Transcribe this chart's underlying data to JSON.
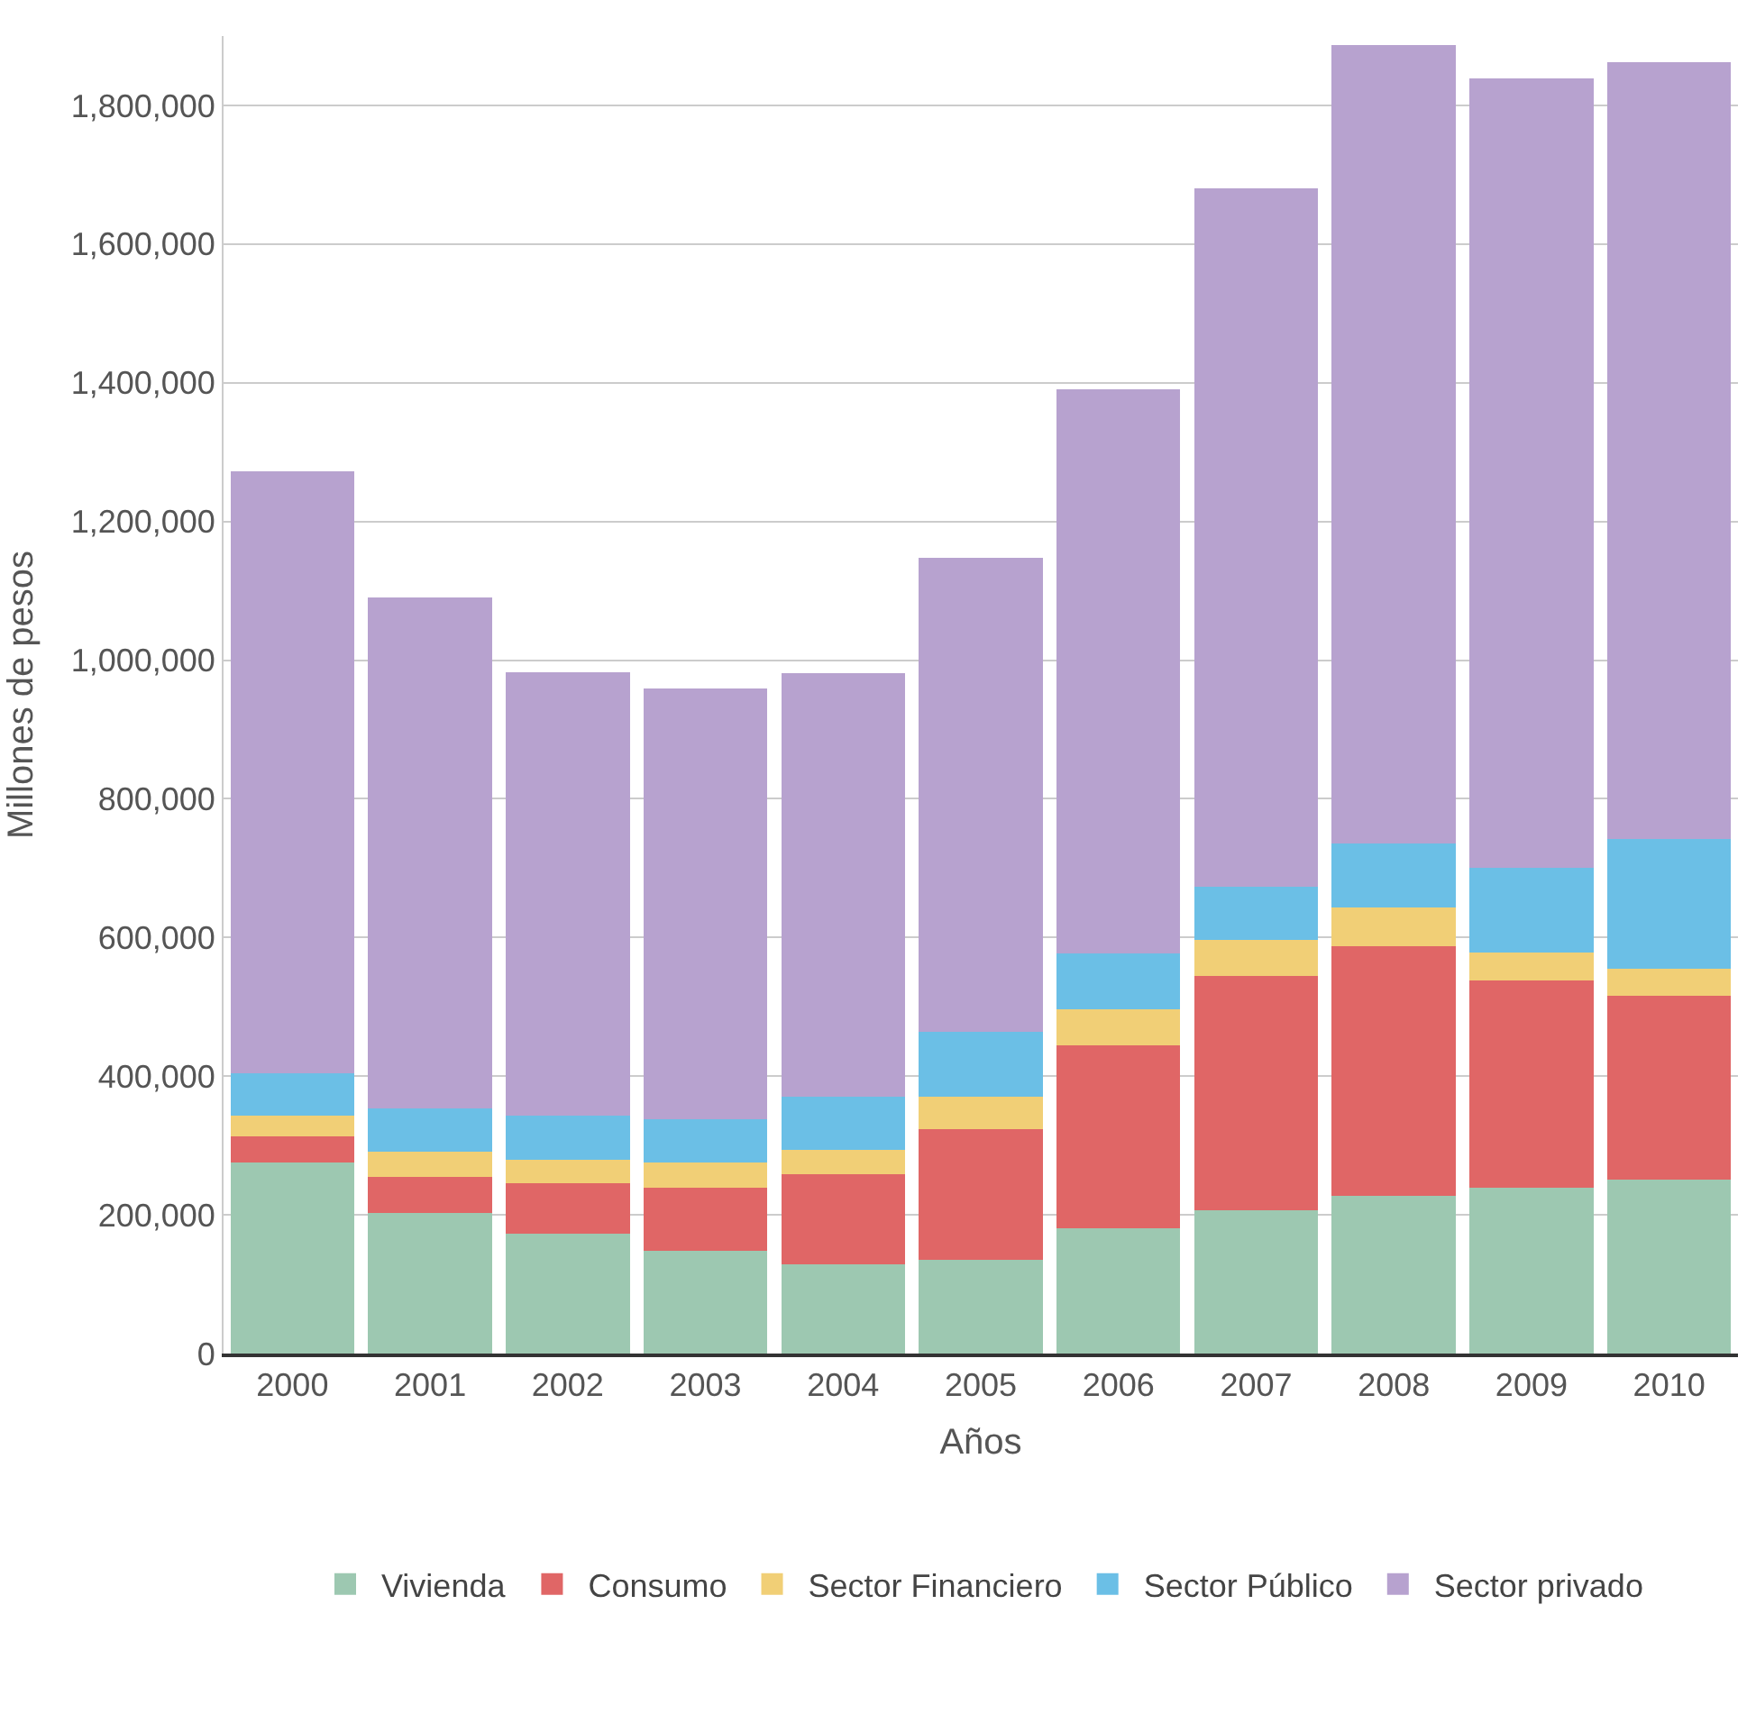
{
  "chart_data": {
    "type": "bar",
    "stacked": true,
    "xlabel": "Años",
    "ylabel": "Millones de pesos",
    "categories": [
      "2000",
      "2001",
      "2002",
      "2003",
      "2004",
      "2005",
      "2006",
      "2007",
      "2008",
      "2009",
      "2010"
    ],
    "series": [
      {
        "name": "Vivienda",
        "color": "#9dc8b1",
        "values": [
          275000,
          203000,
          173000,
          148000,
          129000,
          135000,
          181000,
          207000,
          228000,
          239000,
          251000
        ]
      },
      {
        "name": "Consumo",
        "color": "#e06666",
        "values": [
          38000,
          52000,
          72000,
          91000,
          129000,
          189000,
          264000,
          337000,
          360000,
          299000,
          265000
        ]
      },
      {
        "name": "Sector Financiero",
        "color": "#f1cf76",
        "values": [
          30000,
          36000,
          35000,
          36000,
          36000,
          47000,
          52000,
          52000,
          55000,
          40000,
          39000
        ]
      },
      {
        "name": "Sector Público",
        "color": "#6bbfe6",
        "values": [
          61000,
          63000,
          63000,
          63000,
          77000,
          93000,
          80000,
          77000,
          93000,
          122000,
          187000
        ]
      },
      {
        "name": "Sector privado",
        "color": "#b7a2cf",
        "values": [
          868000,
          736000,
          640000,
          621000,
          610000,
          684000,
          813000,
          1008000,
          1151000,
          1139000,
          1120000
        ]
      }
    ],
    "ylim": [
      0,
      1900000
    ],
    "yticks": [
      {
        "value": 0,
        "label": "0"
      },
      {
        "value": 200000,
        "label": "200,000"
      },
      {
        "value": 400000,
        "label": "400,000"
      },
      {
        "value": 600000,
        "label": "600,000"
      },
      {
        "value": 800000,
        "label": "800,000"
      },
      {
        "value": 1000000,
        "label": "1,000,000"
      },
      {
        "value": 1200000,
        "label": "1,200,000"
      },
      {
        "value": 1400000,
        "label": "1,400,000"
      },
      {
        "value": 1600000,
        "label": "1,600,000"
      },
      {
        "value": 1800000,
        "label": "1,800,000"
      }
    ],
    "grid": "y",
    "legend": "bottom"
  }
}
